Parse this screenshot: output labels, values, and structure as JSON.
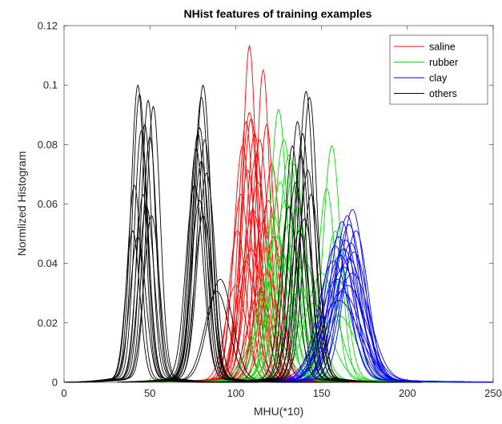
{
  "chart_data": {
    "type": "line",
    "title": "NHist features of training examples",
    "xlabel": "MHU(*10)",
    "ylabel": "Normlized Histogram",
    "xlim": [
      0,
      250
    ],
    "ylim": [
      0,
      0.12
    ],
    "xticks": [
      0,
      50,
      100,
      150,
      200,
      250
    ],
    "yticks": [
      0,
      0.02,
      0.04,
      0.06,
      0.08,
      0.1,
      0.12
    ],
    "xtick_labels": [
      "0",
      "50",
      "100",
      "150",
      "200",
      "250"
    ],
    "ytick_labels": [
      "0",
      "0.02",
      "0.04",
      "0.06",
      "0.08",
      "0.1",
      "0.12"
    ],
    "grid": false,
    "legend_position": "top-right",
    "series": [
      {
        "name": "saline",
        "color": "#ff0000",
        "curves": [
          {
            "center": 108,
            "width": 4,
            "peak": 0.111
          },
          {
            "center": 116,
            "width": 4,
            "peak": 0.103
          },
          {
            "center": 108,
            "width": 5,
            "peak": 0.089
          },
          {
            "center": 109,
            "width": 5,
            "peak": 0.087
          },
          {
            "center": 106,
            "width": 4.5,
            "peak": 0.086
          },
          {
            "center": 111,
            "width": 5,
            "peak": 0.082
          },
          {
            "center": 118,
            "width": 4.5,
            "peak": 0.085
          },
          {
            "center": 114,
            "width": 5,
            "peak": 0.08
          },
          {
            "center": 104,
            "width": 5,
            "peak": 0.078
          },
          {
            "center": 112,
            "width": 5.5,
            "peak": 0.075
          },
          {
            "center": 121,
            "width": 5,
            "peak": 0.072
          },
          {
            "center": 107,
            "width": 5,
            "peak": 0.07
          },
          {
            "center": 113,
            "width": 6,
            "peak": 0.066
          },
          {
            "center": 103,
            "width": 5,
            "peak": 0.062
          },
          {
            "center": 119,
            "width": 6,
            "peak": 0.06
          },
          {
            "center": 110,
            "width": 6,
            "peak": 0.057
          },
          {
            "center": 116,
            "width": 6,
            "peak": 0.053
          },
          {
            "center": 101,
            "width": 5,
            "peak": 0.05
          },
          {
            "center": 122,
            "width": 5.5,
            "peak": 0.048
          },
          {
            "center": 109,
            "width": 7,
            "peak": 0.044
          },
          {
            "center": 106,
            "width": 6,
            "peak": 0.04
          },
          {
            "center": 118,
            "width": 7,
            "peak": 0.036
          },
          {
            "center": 100,
            "width": 6,
            "peak": 0.032
          },
          {
            "center": 114,
            "width": 7,
            "peak": 0.03
          }
        ]
      },
      {
        "name": "rubber",
        "color": "#00e000",
        "curves": [
          {
            "center": 125,
            "width": 5,
            "peak": 0.09
          },
          {
            "center": 156,
            "width": 5,
            "peak": 0.078
          },
          {
            "center": 128,
            "width": 6,
            "peak": 0.08
          },
          {
            "center": 131,
            "width": 6,
            "peak": 0.075
          },
          {
            "center": 134,
            "width": 6,
            "peak": 0.072
          },
          {
            "center": 153,
            "width": 5,
            "peak": 0.064
          },
          {
            "center": 126,
            "width": 6,
            "peak": 0.066
          },
          {
            "center": 129,
            "width": 7,
            "peak": 0.06
          },
          {
            "center": 136,
            "width": 6,
            "peak": 0.058
          },
          {
            "center": 122,
            "width": 7,
            "peak": 0.055
          },
          {
            "center": 131,
            "width": 7,
            "peak": 0.052
          },
          {
            "center": 158,
            "width": 6,
            "peak": 0.05
          },
          {
            "center": 124,
            "width": 8,
            "peak": 0.048
          },
          {
            "center": 133,
            "width": 8,
            "peak": 0.045
          },
          {
            "center": 127,
            "width": 8,
            "peak": 0.042
          },
          {
            "center": 140,
            "width": 8,
            "peak": 0.04
          },
          {
            "center": 150,
            "width": 9,
            "peak": 0.036
          },
          {
            "center": 120,
            "width": 9,
            "peak": 0.033
          },
          {
            "center": 137,
            "width": 9,
            "peak": 0.03
          },
          {
            "center": 145,
            "width": 10,
            "peak": 0.026
          },
          {
            "center": 160,
            "width": 10,
            "peak": 0.022
          },
          {
            "center": 118,
            "width": 10,
            "peak": 0.02
          }
        ]
      },
      {
        "name": "clay",
        "color": "#0000ff",
        "curves": [
          {
            "center": 168,
            "width": 7,
            "peak": 0.057
          },
          {
            "center": 165,
            "width": 7,
            "peak": 0.055
          },
          {
            "center": 162,
            "width": 7,
            "peak": 0.053
          },
          {
            "center": 166,
            "width": 8,
            "peak": 0.052
          },
          {
            "center": 170,
            "width": 7,
            "peak": 0.05
          },
          {
            "center": 160,
            "width": 8,
            "peak": 0.048
          },
          {
            "center": 164,
            "width": 8,
            "peak": 0.047
          },
          {
            "center": 167,
            "width": 8,
            "peak": 0.046
          },
          {
            "center": 158,
            "width": 8,
            "peak": 0.045
          },
          {
            "center": 163,
            "width": 9,
            "peak": 0.044
          },
          {
            "center": 169,
            "width": 8,
            "peak": 0.043
          },
          {
            "center": 161,
            "width": 9,
            "peak": 0.042
          },
          {
            "center": 166,
            "width": 9,
            "peak": 0.041
          },
          {
            "center": 157,
            "width": 9,
            "peak": 0.04
          },
          {
            "center": 163,
            "width": 10,
            "peak": 0.038
          },
          {
            "center": 168,
            "width": 10,
            "peak": 0.036
          },
          {
            "center": 159,
            "width": 10,
            "peak": 0.034
          },
          {
            "center": 165,
            "width": 11,
            "peak": 0.032
          },
          {
            "center": 162,
            "width": 11,
            "peak": 0.03
          },
          {
            "center": 160,
            "width": 12,
            "peak": 0.027
          }
        ]
      },
      {
        "name": "others",
        "color": "#000000",
        "curves": [
          {
            "center": 43,
            "width": 4,
            "peak": 0.098
          },
          {
            "center": 44,
            "width": 4,
            "peak": 0.095
          },
          {
            "center": 49,
            "width": 4,
            "peak": 0.093
          },
          {
            "center": 52,
            "width": 4,
            "peak": 0.091
          },
          {
            "center": 47,
            "width": 4,
            "peak": 0.085
          },
          {
            "center": 45,
            "width": 4,
            "peak": 0.083
          },
          {
            "center": 50,
            "width": 4,
            "peak": 0.081
          },
          {
            "center": 41,
            "width": 4,
            "peak": 0.065
          },
          {
            "center": 46,
            "width": 4,
            "peak": 0.062
          },
          {
            "center": 48,
            "width": 4.5,
            "peak": 0.058
          },
          {
            "center": 40,
            "width": 4,
            "peak": 0.05
          },
          {
            "center": 51,
            "width": 4.5,
            "peak": 0.055
          },
          {
            "center": 43,
            "width": 4.5,
            "peak": 0.048
          },
          {
            "center": 81,
            "width": 4.5,
            "peak": 0.098
          },
          {
            "center": 80,
            "width": 4.5,
            "peak": 0.094
          },
          {
            "center": 79,
            "width": 4.5,
            "peak": 0.084
          },
          {
            "center": 78,
            "width": 4.5,
            "peak": 0.082
          },
          {
            "center": 82,
            "width": 4.5,
            "peak": 0.08
          },
          {
            "center": 77,
            "width": 4.5,
            "peak": 0.077
          },
          {
            "center": 80,
            "width": 5,
            "peak": 0.073
          },
          {
            "center": 83,
            "width": 5,
            "peak": 0.069
          },
          {
            "center": 76,
            "width": 5,
            "peak": 0.065
          },
          {
            "center": 79,
            "width": 5,
            "peak": 0.06
          },
          {
            "center": 81,
            "width": 5,
            "peak": 0.055
          },
          {
            "center": 91,
            "width": 7,
            "peak": 0.034
          },
          {
            "center": 89,
            "width": 7,
            "peak": 0.03
          },
          {
            "center": 141,
            "width": 4.5,
            "peak": 0.096
          },
          {
            "center": 143,
            "width": 4.5,
            "peak": 0.094
          },
          {
            "center": 136,
            "width": 4.5,
            "peak": 0.086
          },
          {
            "center": 139,
            "width": 4.5,
            "peak": 0.082
          },
          {
            "center": 133,
            "width": 4.5,
            "peak": 0.078
          },
          {
            "center": 138,
            "width": 5,
            "peak": 0.075
          },
          {
            "center": 142,
            "width": 5,
            "peak": 0.07
          },
          {
            "center": 135,
            "width": 5,
            "peak": 0.066
          },
          {
            "center": 144,
            "width": 5,
            "peak": 0.062
          },
          {
            "center": 131,
            "width": 5,
            "peak": 0.058
          },
          {
            "center": 140,
            "width": 5.5,
            "peak": 0.054
          },
          {
            "center": 137,
            "width": 5.5,
            "peak": 0.05
          }
        ]
      }
    ]
  }
}
